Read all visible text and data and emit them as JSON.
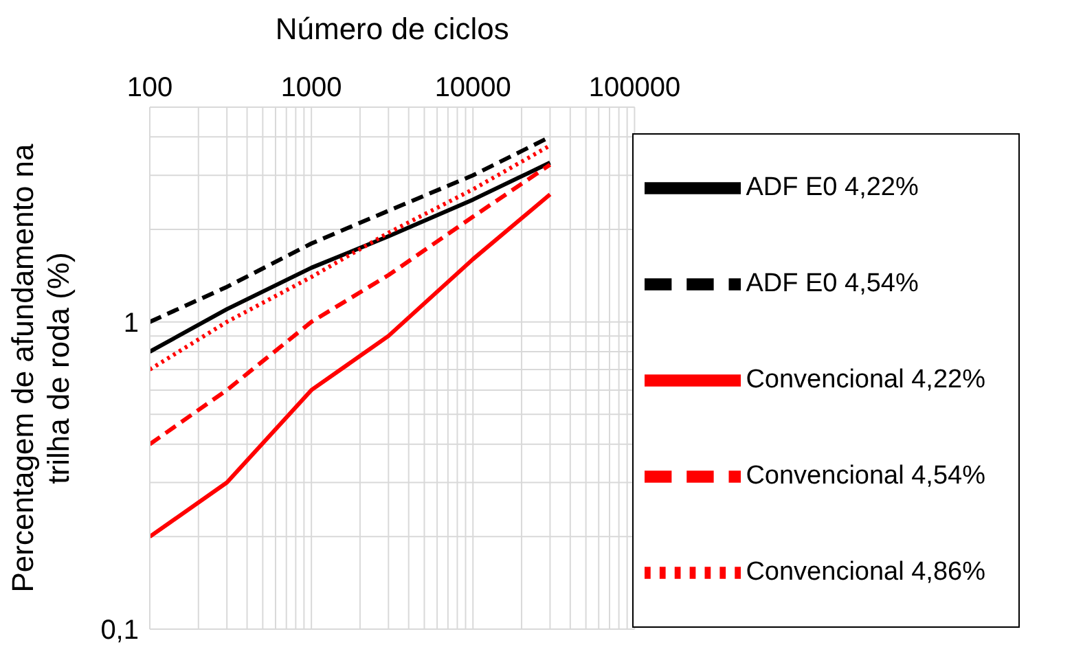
{
  "chart_data": {
    "type": "line",
    "xlabel": "Número de ciclos",
    "ylabel": "Percentagem de afundamento na trilha de roda (%)",
    "log": "xy",
    "grid": true,
    "legend": "bottom right",
    "marker": "none",
    "xlim": [
      100,
      100000
    ],
    "xticks": [
      100,
      {
        "value": 200,
        "label": null
      },
      {
        "value": 300,
        "label": null
      },
      {
        "value": 400,
        "label": null
      },
      {
        "value": 500,
        "label": null
      },
      {
        "value": 600,
        "label": null
      },
      {
        "value": 700,
        "label": null
      },
      {
        "value": 800,
        "label": null
      },
      {
        "value": 900,
        "label": null
      },
      1000,
      {
        "value": 2000,
        "label": null
      },
      {
        "value": 3000,
        "label": null
      },
      {
        "value": 4000,
        "label": null
      },
      {
        "value": 5000,
        "label": null
      },
      {
        "value": 6000,
        "label": null
      },
      {
        "value": 7000,
        "label": null
      },
      {
        "value": 8000,
        "label": null
      },
      {
        "value": 9000,
        "label": null
      },
      10000,
      {
        "value": 20000,
        "label": null
      },
      {
        "value": 30000,
        "label": null
      },
      {
        "value": 40000,
        "label": null
      },
      {
        "value": 50000,
        "label": null
      },
      {
        "value": 60000,
        "label": null
      },
      {
        "value": 70000,
        "label": null
      },
      {
        "value": 80000,
        "label": null
      },
      {
        "value": 90000,
        "label": null
      },
      100000
    ],
    "ylim": [
      0.1,
      5
    ],
    "yticks": [
      {
        "value": 0.1,
        "label": "0,1"
      },
      {
        "value": 0.2,
        "label": null
      },
      {
        "value": 0.3,
        "label": null
      },
      {
        "value": 0.4,
        "label": null
      },
      {
        "value": 0.5,
        "label": null
      },
      {
        "value": 0.6,
        "label": null
      },
      {
        "value": 0.7,
        "label": null
      },
      {
        "value": 0.8,
        "label": null
      },
      {
        "value": 0.9,
        "label": null
      },
      1,
      {
        "value": 2,
        "label": null
      },
      {
        "value": 3,
        "label": null
      },
      {
        "value": 4,
        "label": null
      },
      {
        "value": 5,
        "label": null
      }
    ],
    "x": [
      100,
      300,
      1000,
      3000,
      10000,
      30000
    ],
    "series": [
      {
        "name": "ADF E0 4,22%",
        "color": "#000000",
        "line_style": "solid",
        "values": [
          0.8,
          1.1,
          1.5,
          1.9,
          2.5,
          3.3
        ]
      },
      {
        "name": "ADF E0 4,54%",
        "color": "#000000",
        "line_style": "dashed",
        "values": [
          1.0,
          1.3,
          1.8,
          2.3,
          3.0,
          4.0
        ]
      },
      {
        "name": "Convencional 4,22%",
        "color": "#ff0000",
        "line_style": "solid",
        "values": [
          0.2,
          0.3,
          0.6,
          0.9,
          1.6,
          2.6
        ]
      },
      {
        "name": "Convencional 4,54%",
        "color": "#ff0000",
        "line_style": "dashed",
        "values": [
          0.4,
          0.6,
          1.0,
          1.42,
          2.2,
          3.25
        ]
      },
      {
        "name": "Convencional 4,86%",
        "color": "#ff0000",
        "line_style": "dotted",
        "values": [
          0.7,
          1.0,
          1.4,
          1.95,
          2.7,
          3.75
        ]
      }
    ]
  }
}
